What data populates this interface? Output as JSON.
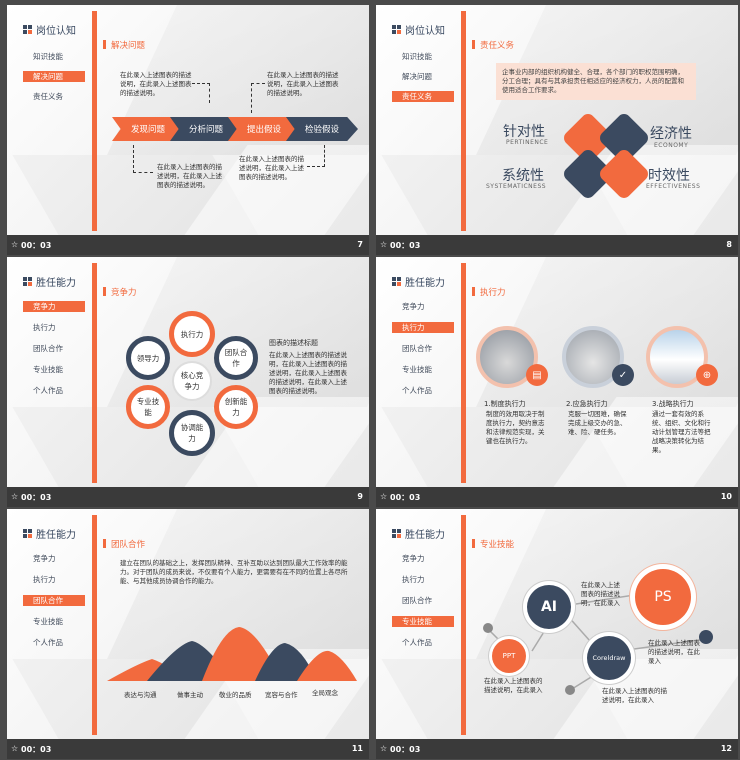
{
  "slides": [
    {
      "id": "s7",
      "sidebar_title": "岗位认知",
      "sidebar_items": [
        "知识技能",
        "解决问题",
        "责任义务"
      ],
      "active_index": 1,
      "section": "解决问题",
      "steps": [
        "发现问题",
        "分析问题",
        "提出假设",
        "检验假设"
      ],
      "note_top1": "在此录入上述图表的描述说明，在此录入上述图表的描述说明。",
      "note_top2": "在此录入上述图表的描述说明，在此录入上述图表的描述说明。",
      "note_bottom1": "在此录入上述图表的描述说明，在此录入上述图表的描述说明。",
      "note_bottom2": "在此录入上述图表的描述说明，在此录入上述图表的描述说明。",
      "time": "00：03",
      "page": "7"
    },
    {
      "id": "s8",
      "sidebar_title": "岗位认知",
      "sidebar_items": [
        "知识技能",
        "解决问题",
        "责任义务"
      ],
      "active_index": 2,
      "section": "责任义务",
      "quote": "企事业内部的组织机构健全、合理，各个部门的职权范围明确，分工合理；具有与其承担责任相适应的经济权力，人员的配置和使用适合工作要求。",
      "labels": [
        {
          "cn": "针对性",
          "en": "PERTINENCE"
        },
        {
          "cn": "经济性",
          "en": "ECONOMY"
        },
        {
          "cn": "系统性",
          "en": "SYSTEMATICNESS"
        },
        {
          "cn": "时效性",
          "en": "EFFECTIVENESS"
        }
      ],
      "time": "00：03",
      "page": "8"
    },
    {
      "id": "s9",
      "sidebar_title": "胜任能力",
      "sidebar_items": [
        "竞争力",
        "执行力",
        "团队合作",
        "专业技能",
        "个人作品"
      ],
      "active_index": 0,
      "section": "竞争力",
      "center": "核心竞争力",
      "petals": [
        "执行力",
        "团队合作",
        "创新能力",
        "协调能力",
        "专业技能",
        "领导力"
      ],
      "desc_title": "图表的描述标题",
      "desc": "在此录入上述图表的描述说明，在此录入上述图表的描述说明，在此录入上述图表的描述说明，在此录入上述图表的描述说明。",
      "time": "00：03",
      "page": "9"
    },
    {
      "id": "s10",
      "sidebar_title": "胜任能力",
      "sidebar_items": [
        "竞争力",
        "执行力",
        "团队合作",
        "专业技能",
        "个人作品"
      ],
      "active_index": 1,
      "section": "执行力",
      "cols": [
        {
          "title": "1.制度执行力",
          "text": "制度的效用取决于制度执行力，契约意志和法律规范实现，关键也在执行力。"
        },
        {
          "title": "2.应急执行力",
          "text": "克服一切困难，确保完成上级交办的急、难、险、硬任务。"
        },
        {
          "title": "3.战略执行力",
          "text": "通过一套有效的系统、组织、文化和行动计划管理方法等把战略决策转化为结果。"
        }
      ],
      "time": "00：03",
      "page": "10"
    },
    {
      "id": "s11",
      "sidebar_title": "胜任能力",
      "sidebar_items": [
        "竞争力",
        "执行力",
        "团队合作",
        "专业技能",
        "个人作品"
      ],
      "active_index": 2,
      "section": "团队合作",
      "paragraph": "建立在团队的基础之上，发挥团队精神、互补互助以达到团队最大工作效率的能力。对于团队的成员来说，不仅要有个人能力，更需要有在不同的位置上各尽所能、与其他成员协调合作的能力。",
      "chart_labels": [
        "表达与沟通",
        "做事主动",
        "敬业的品质",
        "宽容与合作",
        "全局观念"
      ],
      "time": "00：03",
      "page": "11"
    },
    {
      "id": "s12",
      "sidebar_title": "胜任能力",
      "sidebar_items": [
        "竞争力",
        "执行力",
        "团队合作",
        "专业技能",
        "个人作品"
      ],
      "active_index": 3,
      "section": "专业技能",
      "bubbles": [
        "AI",
        "PS",
        "PPT",
        "Coreldraw"
      ],
      "note1": "在此录入上述图表的描述说明，在此录入",
      "note2": "在此录入上述图表的描述说明，在此录入",
      "note3": "在此录入上述图表的描述说明，在此录入",
      "note4": "在此录入上述图表的描述说明，在此录入",
      "time": "00：03",
      "page": "12"
    }
  ],
  "colors": {
    "accent": "#f26a3e",
    "navy": "#3b4a60"
  }
}
